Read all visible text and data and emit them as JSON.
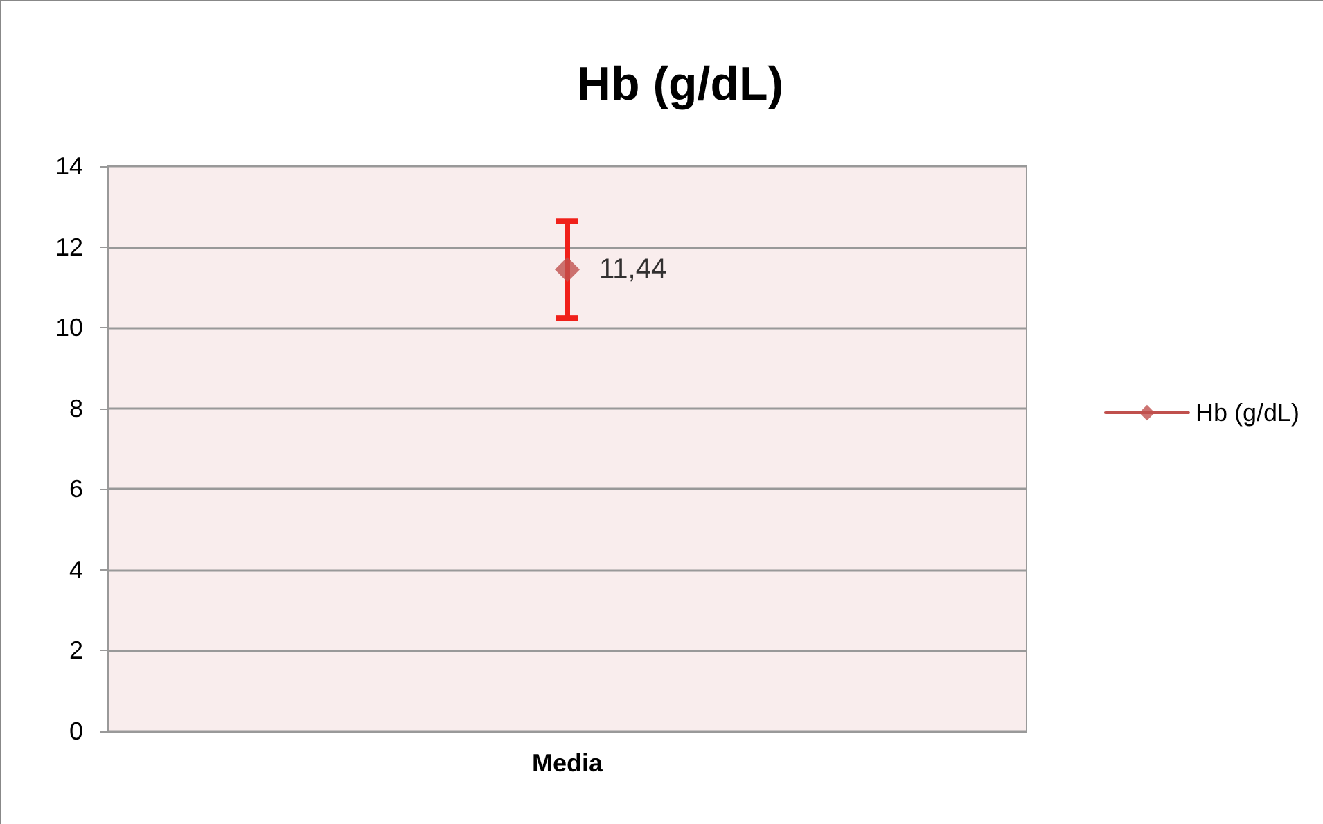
{
  "chart_data": {
    "type": "line",
    "title": "Hb (g/dL)",
    "categories": [
      "Media"
    ],
    "series": [
      {
        "name": "Hb (g/dL)",
        "color": "#c0504d",
        "values": [
          11.44
        ],
        "errors": [
          1.2
        ],
        "value_labels": [
          "11,44"
        ]
      }
    ],
    "ylim": [
      0,
      14
    ],
    "yticks": [
      0,
      2,
      4,
      6,
      8,
      10,
      12,
      14
    ],
    "grid": "y",
    "legend": "right",
    "marker": "diamond"
  }
}
